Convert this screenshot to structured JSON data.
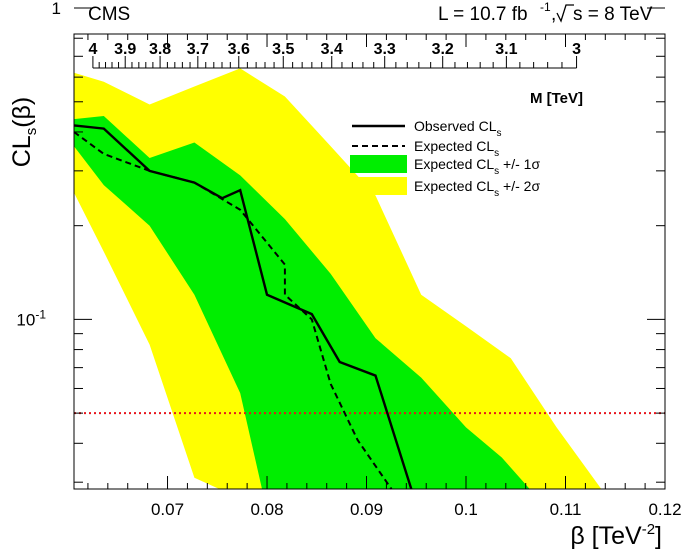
{
  "chart_data": {
    "type": "area",
    "header": {
      "experiment": "CMS",
      "lumi": "L = 10.7 fb",
      "lumi_sup": "-1",
      "comma": ",",
      "sqrt_s": "s = 8 TeV"
    },
    "xlabel": "β [TeV",
    "xlabel_sup": "-2",
    "xlabel_close": "]",
    "ylabel": "CL",
    "ylabel_sub": "s",
    "ylabel_rest": "(β)",
    "top_axis_label": "M [TeV]",
    "xlim": [
      0.06,
      0.12
    ],
    "ylim": [
      0.025,
      2
    ],
    "yscale": "log",
    "x_ticks": [
      {
        "v": 0.07,
        "label": "0.07"
      },
      {
        "v": 0.08,
        "label": "0.08"
      },
      {
        "v": 0.09,
        "label": "0.09"
      },
      {
        "v": 0.1,
        "label": "0.1"
      },
      {
        "v": 0.11,
        "label": "0.11"
      },
      {
        "v": 0.12,
        "label": "0.12"
      }
    ],
    "y_ticks": [
      {
        "v": 1,
        "label": "1"
      },
      {
        "v": 0.1,
        "label": "10",
        "sup": "-1"
      }
    ],
    "top_ticks": [
      {
        "m": 4.0,
        "label": "4"
      },
      {
        "m": 3.9,
        "label": "3.9"
      },
      {
        "m": 3.8,
        "label": "3.8"
      },
      {
        "m": 3.7,
        "label": "3.7"
      },
      {
        "m": 3.6,
        "label": "3.6"
      },
      {
        "m": 3.5,
        "label": "3.5"
      },
      {
        "m": 3.4,
        "label": "3.4"
      },
      {
        "m": 3.3,
        "label": "3.3"
      },
      {
        "m": 3.2,
        "label": "3.2"
      },
      {
        "m": 3.1,
        "label": "3.1"
      },
      {
        "m": 3.0,
        "label": "3"
      }
    ],
    "reference_line": {
      "y": 0.05,
      "color": "#e8141c"
    },
    "legend": {
      "placement": "top-right",
      "entries": [
        {
          "key": "observed",
          "label": "Observed CL",
          "sub": "s"
        },
        {
          "key": "expected",
          "label": "Expected CL",
          "sub": "s"
        },
        {
          "key": "band1",
          "label": "Expected CL",
          "sub": "s",
          "suffix": " +/- 1σ"
        },
        {
          "key": "band2",
          "label": "Expected CL",
          "sub": "s",
          "suffix": " +/- 2σ"
        }
      ]
    },
    "colors": {
      "band1": "#00ee00",
      "band2": "#ffff00",
      "line": "#000000"
    },
    "series": [
      {
        "key": "band2",
        "upper": [
          [
            0.06,
            0.62
          ],
          [
            0.0636,
            0.58
          ],
          [
            0.0682,
            0.49
          ],
          [
            0.0727,
            0.56
          ],
          [
            0.0773,
            0.64
          ],
          [
            0.0818,
            0.52
          ],
          [
            0.0864,
            0.36
          ],
          [
            0.0909,
            0.25
          ],
          [
            0.0955,
            0.12
          ],
          [
            0.1,
            0.095
          ],
          [
            0.1045,
            0.075
          ],
          [
            0.1091,
            0.045
          ],
          [
            0.1136,
            0.025
          ]
        ],
        "lower": [
          [
            0.06,
            0.255
          ],
          [
            0.0636,
            0.165
          ],
          [
            0.0682,
            0.083
          ],
          [
            0.0727,
            0.031
          ],
          [
            0.0752,
            0.025
          ]
        ]
      },
      {
        "key": "band1",
        "upper": [
          [
            0.06,
            0.44
          ],
          [
            0.0636,
            0.45
          ],
          [
            0.0682,
            0.33
          ],
          [
            0.0727,
            0.37
          ],
          [
            0.0773,
            0.29
          ],
          [
            0.0818,
            0.21
          ],
          [
            0.0864,
            0.14
          ],
          [
            0.0909,
            0.087
          ],
          [
            0.0955,
            0.065
          ],
          [
            0.1,
            0.045
          ],
          [
            0.1036,
            0.036
          ],
          [
            0.1064,
            0.025
          ]
        ],
        "lower": [
          [
            0.06,
            0.36
          ],
          [
            0.0636,
            0.27
          ],
          [
            0.0682,
            0.2
          ],
          [
            0.0727,
            0.12
          ],
          [
            0.0773,
            0.058
          ],
          [
            0.0795,
            0.025
          ]
        ]
      },
      {
        "key": "observed",
        "points": [
          [
            0.06,
            0.42
          ],
          [
            0.0636,
            0.41
          ],
          [
            0.0682,
            0.3
          ],
          [
            0.0727,
            0.275
          ],
          [
            0.0755,
            0.245
          ],
          [
            0.0773,
            0.26
          ],
          [
            0.08,
            0.12
          ],
          [
            0.0845,
            0.104
          ],
          [
            0.0873,
            0.073
          ],
          [
            0.0909,
            0.066
          ],
          [
            0.0945,
            0.025
          ]
        ]
      },
      {
        "key": "expected",
        "points": [
          [
            0.06,
            0.4
          ],
          [
            0.0636,
            0.34
          ],
          [
            0.0682,
            0.3
          ],
          [
            0.0727,
            0.275
          ],
          [
            0.0773,
            0.225
          ],
          [
            0.0818,
            0.15
          ],
          [
            0.0818,
            0.12
          ],
          [
            0.0845,
            0.1
          ],
          [
            0.0864,
            0.062
          ],
          [
            0.0891,
            0.041
          ],
          [
            0.0925,
            0.025
          ]
        ]
      }
    ]
  }
}
